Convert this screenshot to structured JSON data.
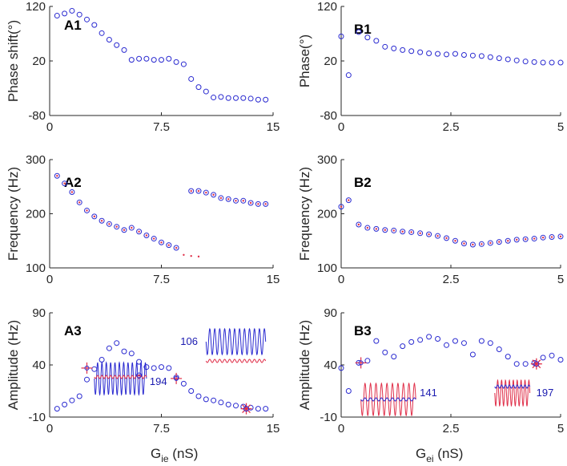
{
  "colors": {
    "blue": "#2a2ad0",
    "red": "#e0304a",
    "inset_blue": "#3a3ae0",
    "axis": "#262626"
  },
  "xlabels": [
    {
      "name": "x-label-gie",
      "base": "G",
      "sub": "ie",
      "rest": " (nS)"
    },
    {
      "name": "x-label-gei",
      "base": "G",
      "sub": "ei",
      "rest": " (nS)"
    }
  ],
  "chart_data": [
    {
      "id": "A1",
      "type": "scatter",
      "label": "A1",
      "ylabel": "Phase shift(°)",
      "xlim": [
        0,
        15
      ],
      "ylim": [
        -80,
        120
      ],
      "xticks": [
        0,
        7.5,
        15
      ],
      "xtick_labels": [
        "0",
        "7.5",
        "15"
      ],
      "yticks": [
        -80,
        20,
        120
      ],
      "ytick_labels": [
        "-80",
        "20",
        "120"
      ],
      "series": [
        {
          "name": "blue",
          "marker": "circle",
          "x": [
            0.5,
            1.0,
            1.5,
            2.0,
            2.5,
            3.0,
            3.5,
            4.0,
            4.5,
            5.0,
            5.5,
            6.0,
            6.5,
            7.0,
            7.5,
            8.0,
            8.5,
            9.0,
            9.5,
            10.0,
            10.5,
            11.0,
            11.5,
            12.0,
            12.5,
            13.0,
            13.5,
            14.0,
            14.5
          ],
          "y": [
            103,
            107,
            112,
            105,
            96,
            86,
            71,
            59,
            49,
            40,
            22,
            24,
            24,
            22,
            22,
            24,
            18,
            14,
            -13,
            -28,
            -36,
            -47,
            -46,
            -48,
            -48,
            -48,
            -49,
            -51,
            -51
          ]
        }
      ]
    },
    {
      "id": "A2",
      "type": "scatter",
      "label": "A2",
      "ylabel": "Frequency (Hz)",
      "xlim": [
        0,
        15
      ],
      "ylim": [
        100,
        300
      ],
      "xticks": [
        0,
        7.5,
        15
      ],
      "xtick_labels": [
        "0",
        "7.5",
        "15"
      ],
      "yticks": [
        100,
        200,
        300
      ],
      "ytick_labels": [
        "100",
        "200",
        "300"
      ],
      "series": [
        {
          "name": "blue",
          "marker": "circle",
          "x": [
            0.5,
            1.0,
            1.5,
            2.0,
            2.5,
            3.0,
            3.5,
            4.0,
            4.5,
            5.0,
            5.5,
            6.0,
            6.5,
            7.0,
            7.5,
            8.0,
            8.5,
            9.5,
            10.0,
            10.5,
            11.0,
            11.5,
            12.0,
            12.5,
            13.0,
            13.5,
            14.0,
            14.5
          ],
          "y": [
            270,
            256,
            240,
            221,
            206,
            195,
            187,
            181,
            176,
            170,
            174,
            167,
            160,
            154,
            147,
            142,
            137,
            242,
            242,
            239,
            235,
            229,
            227,
            224,
            224,
            220,
            218,
            218
          ]
        },
        {
          "name": "red",
          "marker": "dot",
          "x": [
            0.5,
            1.0,
            1.5,
            2.0,
            2.5,
            3.0,
            3.5,
            4.0,
            4.5,
            5.0,
            5.5,
            6.0,
            6.5,
            7.0,
            7.5,
            8.0,
            8.5,
            9.5,
            10.0,
            10.5,
            11.0,
            11.5,
            12.0,
            12.5,
            13.0,
            13.5,
            14.0,
            14.5,
            9.0,
            9.5,
            10.0
          ],
          "y": [
            270,
            256,
            240,
            221,
            206,
            195,
            187,
            181,
            176,
            170,
            174,
            167,
            160,
            154,
            147,
            142,
            137,
            242,
            242,
            239,
            235,
            229,
            227,
            224,
            224,
            220,
            218,
            218,
            124,
            122,
            121
          ]
        }
      ]
    },
    {
      "id": "A3",
      "type": "scatter",
      "label": "A3",
      "ylabel": "Amplitude (Hz)",
      "xlim": [
        0,
        15
      ],
      "ylim": [
        -10,
        90
      ],
      "xticks": [
        0,
        7.5,
        15
      ],
      "xtick_labels": [
        "0",
        "7.5",
        "15"
      ],
      "yticks": [
        -10,
        40,
        90
      ],
      "ytick_labels": [
        "-10",
        "40",
        "90"
      ],
      "series": [
        {
          "name": "blue",
          "marker": "circle",
          "x": [
            0.5,
            1.0,
            1.5,
            2.0,
            2.5,
            3.0,
            3.5,
            4.0,
            4.5,
            5.0,
            5.5,
            6.0,
            6.5,
            7.0,
            7.5,
            8.0,
            8.5,
            9.0,
            9.5,
            10.0,
            10.5,
            11.0,
            11.5,
            12.0,
            12.5,
            13.0,
            13.5,
            14.0,
            14.5
          ],
          "y": [
            -2,
            2,
            6,
            10,
            26,
            36,
            45,
            56,
            61,
            53,
            51,
            43,
            38,
            37,
            38,
            37,
            28,
            22,
            15,
            10,
            7,
            6,
            4,
            2,
            1,
            0,
            -1,
            -2,
            -2
          ]
        }
      ],
      "markers": [
        {
          "x": 2.5,
          "y": 37,
          "type": "plus"
        },
        {
          "x": 6.0,
          "y": 30,
          "type": "circle-dot"
        },
        {
          "x": 8.5,
          "y": 27,
          "type": "plus"
        },
        {
          "x": 13.2,
          "y": -2,
          "type": "star"
        }
      ],
      "insets": [
        {
          "text": "194",
          "cycles": 12,
          "x0": 3.0,
          "x1": 6.5,
          "trace_color": "blue",
          "sub_color": "red",
          "pos": "center-left"
        },
        {
          "text": "106",
          "cycles": 12,
          "x0": 10.5,
          "x1": 14.5,
          "trace_color": "blue",
          "sub_color": "red",
          "pos": "upper-right"
        }
      ]
    },
    {
      "id": "B1",
      "type": "scatter",
      "label": "B1",
      "ylabel": "Phase(°)",
      "xlim": [
        0,
        5
      ],
      "ylim": [
        -80,
        120
      ],
      "xticks": [
        0,
        2.5,
        5
      ],
      "xtick_labels": [
        "0",
        "2.5",
        "5"
      ],
      "yticks": [
        -80,
        20,
        120
      ],
      "ytick_labels": [
        "-80",
        "20",
        "120"
      ],
      "series": [
        {
          "name": "blue",
          "marker": "circle",
          "x": [
            0.0,
            0.17,
            0.4,
            0.6,
            0.8,
            1.0,
            1.2,
            1.4,
            1.6,
            1.8,
            2.0,
            2.2,
            2.4,
            2.6,
            2.8,
            3.0,
            3.2,
            3.4,
            3.6,
            3.8,
            4.0,
            4.2,
            4.4,
            4.6,
            4.8,
            5.0
          ],
          "y": [
            65,
            -6,
            73,
            63,
            57,
            46,
            43,
            40,
            38,
            36,
            34,
            33,
            32,
            33,
            31,
            30,
            29,
            27,
            25,
            23,
            21,
            19,
            18,
            17,
            17,
            17
          ]
        }
      ]
    },
    {
      "id": "B2",
      "type": "scatter",
      "label": "B2",
      "ylabel": "Frequency (Hz)",
      "xlim": [
        0,
        5
      ],
      "ylim": [
        100,
        300
      ],
      "xticks": [
        0,
        2.5,
        5
      ],
      "xtick_labels": [
        "0",
        "2.5",
        "5"
      ],
      "yticks": [
        100,
        200,
        300
      ],
      "ytick_labels": [
        "100",
        "200",
        "300"
      ],
      "series": [
        {
          "name": "blue",
          "marker": "circle",
          "x": [
            0.0,
            0.17,
            0.4,
            0.6,
            0.8,
            1.0,
            1.2,
            1.4,
            1.6,
            1.8,
            2.0,
            2.2,
            2.4,
            2.6,
            2.8,
            3.0,
            3.2,
            3.4,
            3.6,
            3.8,
            4.0,
            4.2,
            4.4,
            4.6,
            4.8,
            5.0
          ],
          "y": [
            213,
            225,
            180,
            174,
            172,
            170,
            169,
            167,
            166,
            164,
            162,
            159,
            155,
            150,
            145,
            143,
            144,
            146,
            148,
            150,
            152,
            153,
            154,
            156,
            157,
            158
          ]
        },
        {
          "name": "red",
          "marker": "dot",
          "x": [
            0.0,
            0.17,
            0.4,
            0.6,
            0.8,
            1.0,
            1.2,
            1.4,
            1.6,
            1.8,
            2.0,
            2.2,
            2.4,
            2.6,
            2.8,
            3.0,
            3.2,
            3.4,
            3.6,
            3.8,
            4.0,
            4.2,
            4.4,
            4.6,
            4.8,
            5.0
          ],
          "y": [
            213,
            225,
            180,
            174,
            172,
            170,
            169,
            167,
            166,
            164,
            162,
            159,
            155,
            150,
            145,
            143,
            144,
            146,
            148,
            150,
            152,
            153,
            154,
            156,
            157,
            158
          ]
        }
      ]
    },
    {
      "id": "B3",
      "type": "scatter",
      "label": "B3",
      "ylabel": "Amplitude (Hz)",
      "xlim": [
        0,
        5
      ],
      "ylim": [
        -10,
        90
      ],
      "xticks": [
        0,
        2.5,
        5
      ],
      "xtick_labels": [
        "0",
        "2.5",
        "5"
      ],
      "yticks": [
        -10,
        40,
        90
      ],
      "ytick_labels": [
        "-10",
        "40",
        "90"
      ],
      "series": [
        {
          "name": "blue",
          "marker": "circle",
          "x": [
            0.0,
            0.17,
            0.4,
            0.6,
            0.8,
            1.0,
            1.2,
            1.4,
            1.6,
            1.8,
            2.0,
            2.2,
            2.4,
            2.6,
            2.8,
            3.0,
            3.2,
            3.4,
            3.6,
            3.8,
            4.0,
            4.2,
            4.4,
            4.6,
            4.8,
            5.0
          ],
          "y": [
            37,
            15,
            42,
            44,
            63,
            52,
            48,
            58,
            62,
            64,
            67,
            65,
            59,
            63,
            61,
            50,
            63,
            61,
            55,
            48,
            41,
            41,
            42,
            47,
            49,
            45
          ]
        }
      ],
      "markers": [
        {
          "x": 0.45,
          "y": 42,
          "type": "plus"
        },
        {
          "x": 4.45,
          "y": 41,
          "type": "star"
        }
      ],
      "insets": [
        {
          "text": "141",
          "cycles": 10,
          "x0": 0.45,
          "x1": 1.7,
          "trace_color": "red",
          "sub_color": "blue",
          "pos": "bottom-left"
        },
        {
          "text": "197",
          "cycles": 9,
          "x0": 3.5,
          "x1": 4.3,
          "trace_color": "red",
          "sub_color": "blue",
          "pos": "bottom-right"
        }
      ]
    }
  ]
}
